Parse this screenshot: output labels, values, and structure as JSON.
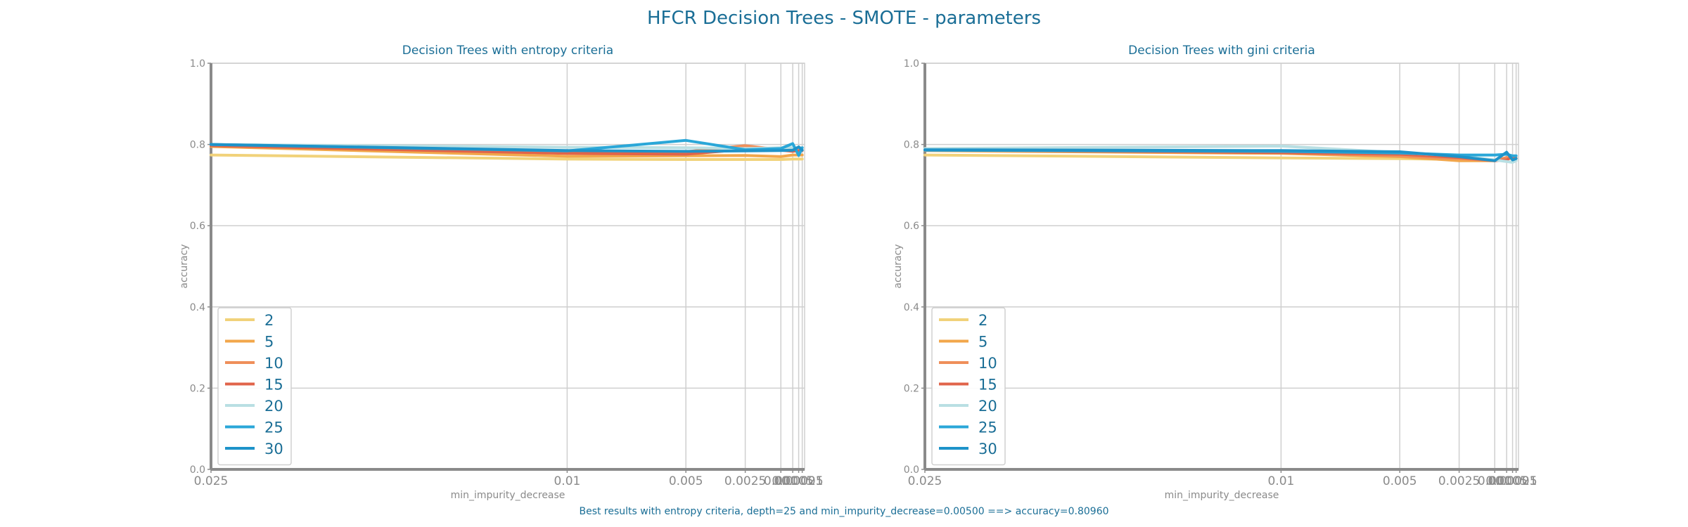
{
  "suptitle": "HFCR Decision Trees - SMOTE - parameters",
  "footer": "Best results with entropy criteria, depth=25 and min_impurity_decrease=0.00500 ==> accuracy=0.80960",
  "colors": {
    "2": "#f1d27a",
    "5": "#f2a74b",
    "10": "#ef8f5a",
    "15": "#e0644a",
    "20": "#b9dfe3",
    "25": "#2aa7d8",
    "30": "#1e93c9",
    "text": "#1a6e96",
    "grid": "#cfcfcf",
    "axis": "#8a8a8a"
  },
  "chart_data": [
    {
      "type": "line",
      "title": "Decision Trees with entropy criteria",
      "xlabel": "min_impurity_decrease",
      "ylabel": "accuracy",
      "ylim": [
        0,
        1
      ],
      "xlim": [
        0.025,
        0.0
      ],
      "grid": true,
      "legend_position": "lower-left",
      "x": [
        0.025,
        0.01,
        0.005,
        0.0025,
        0.001,
        0.0005,
        0.00025,
        0.0001
      ],
      "xticks": [
        "0.025",
        "0.01",
        "0.005",
        "0.0025",
        "0.001",
        "0.0005",
        "0.00025",
        "0.0001"
      ],
      "yticks": [
        "0.0",
        "0.2",
        "0.4",
        "0.6",
        "0.8",
        "1.0"
      ],
      "series": [
        {
          "name": "2",
          "values": [
            0.774,
            0.764,
            0.763,
            0.763,
            0.763,
            0.764,
            0.764,
            0.764
          ]
        },
        {
          "name": "5",
          "values": [
            0.795,
            0.771,
            0.772,
            0.773,
            0.77,
            0.774,
            0.774,
            0.774
          ]
        },
        {
          "name": "10",
          "values": [
            0.797,
            0.78,
            0.782,
            0.797,
            0.787,
            0.784,
            0.786,
            0.786
          ]
        },
        {
          "name": "15",
          "values": [
            0.797,
            0.778,
            0.776,
            0.788,
            0.786,
            0.783,
            0.785,
            0.785
          ]
        },
        {
          "name": "20",
          "values": [
            0.8,
            0.793,
            0.792,
            0.79,
            0.792,
            0.792,
            0.792,
            0.792
          ]
        },
        {
          "name": "25",
          "values": [
            0.8,
            0.784,
            0.81,
            0.787,
            0.79,
            0.802,
            0.773,
            0.792
          ]
        },
        {
          "name": "30",
          "values": [
            0.8,
            0.785,
            0.783,
            0.784,
            0.785,
            0.786,
            0.794,
            0.786
          ]
        }
      ]
    },
    {
      "type": "line",
      "title": "Decision Trees with gini criteria",
      "xlabel": "min_impurity_decrease",
      "ylabel": "accuracy",
      "ylim": [
        0,
        1
      ],
      "xlim": [
        0.025,
        0.0
      ],
      "grid": true,
      "legend_position": "lower-left",
      "x": [
        0.025,
        0.01,
        0.005,
        0.0025,
        0.001,
        0.0005,
        0.00025,
        0.0001
      ],
      "xticks": [
        "0.025",
        "0.01",
        "0.005",
        "0.0025",
        "0.001",
        "0.0005",
        "0.00025",
        "0.0001"
      ],
      "yticks": [
        "0.0",
        "0.2",
        "0.4",
        "0.6",
        "0.8",
        "1.0"
      ],
      "series": [
        {
          "name": "2",
          "values": [
            0.774,
            0.767,
            0.765,
            0.763,
            0.76,
            0.765,
            0.766,
            0.766
          ]
        },
        {
          "name": "5",
          "values": [
            0.785,
            0.778,
            0.77,
            0.76,
            0.76,
            0.765,
            0.766,
            0.766
          ]
        },
        {
          "name": "10",
          "values": [
            0.786,
            0.78,
            0.772,
            0.765,
            0.76,
            0.768,
            0.766,
            0.766
          ]
        },
        {
          "name": "15",
          "values": [
            0.787,
            0.78,
            0.776,
            0.768,
            0.76,
            0.762,
            0.77,
            0.766
          ]
        },
        {
          "name": "20",
          "values": [
            0.79,
            0.796,
            0.78,
            0.772,
            0.762,
            0.758,
            0.756,
            0.76
          ]
        },
        {
          "name": "25",
          "values": [
            0.786,
            0.783,
            0.779,
            0.774,
            0.774,
            0.776,
            0.772,
            0.772
          ]
        },
        {
          "name": "30",
          "values": [
            0.787,
            0.785,
            0.782,
            0.77,
            0.76,
            0.781,
            0.762,
            0.765
          ]
        }
      ]
    }
  ]
}
